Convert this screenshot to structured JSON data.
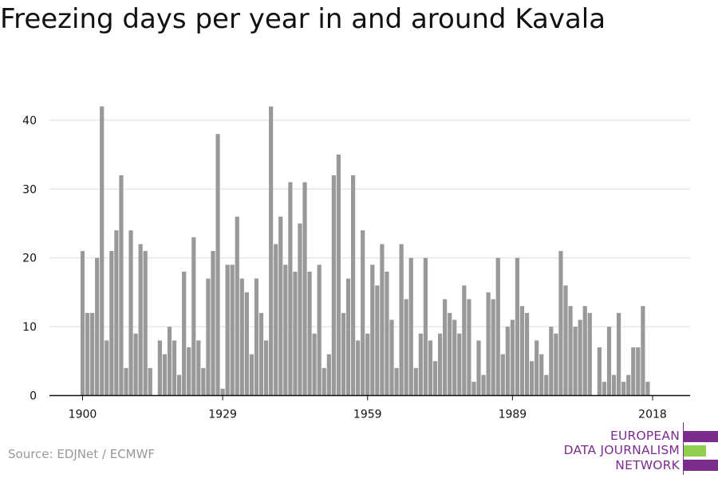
{
  "title": "Freezing days per year in and around Kavala",
  "source": "Source: EDJNet / ECMWF",
  "logo": {
    "lines": [
      "EUROPEAN",
      "DATA JOURNALISM",
      "NETWORK"
    ],
    "colors": {
      "purple": "#7b2d8e",
      "green": "#8fd14f"
    }
  },
  "colors": {
    "bar": "#999999",
    "grid": "#dddddd",
    "axis": "#111111"
  },
  "chart_data": {
    "type": "bar",
    "x": [
      1900,
      1901,
      1902,
      1903,
      1904,
      1905,
      1906,
      1907,
      1908,
      1909,
      1910,
      1911,
      1912,
      1913,
      1914,
      1915,
      1916,
      1917,
      1918,
      1919,
      1920,
      1921,
      1922,
      1923,
      1924,
      1925,
      1926,
      1927,
      1928,
      1929,
      1930,
      1931,
      1932,
      1933,
      1934,
      1935,
      1936,
      1937,
      1938,
      1939,
      1940,
      1941,
      1942,
      1943,
      1944,
      1945,
      1946,
      1947,
      1948,
      1949,
      1950,
      1951,
      1952,
      1953,
      1954,
      1955,
      1956,
      1957,
      1958,
      1959,
      1960,
      1961,
      1962,
      1963,
      1964,
      1965,
      1966,
      1967,
      1968,
      1969,
      1970,
      1971,
      1972,
      1973,
      1974,
      1975,
      1976,
      1977,
      1978,
      1979,
      1980,
      1981,
      1982,
      1983,
      1984,
      1985,
      1986,
      1987,
      1988,
      1989,
      1990,
      1991,
      1992,
      1993,
      1994,
      1995,
      1996,
      1997,
      1998,
      1999,
      2000,
      2001,
      2002,
      2003,
      2004,
      2005,
      2006,
      2007,
      2008,
      2009,
      2010,
      2011,
      2012,
      2013,
      2014,
      2015,
      2016,
      2017,
      2018
    ],
    "values": [
      21,
      12,
      12,
      20,
      42,
      8,
      21,
      24,
      32,
      4,
      24,
      9,
      22,
      21,
      4,
      0,
      8,
      6,
      10,
      8,
      3,
      18,
      7,
      23,
      8,
      4,
      17,
      21,
      38,
      1,
      19,
      19,
      26,
      17,
      15,
      6,
      17,
      12,
      8,
      42,
      22,
      26,
      19,
      31,
      18,
      25,
      31,
      18,
      9,
      19,
      4,
      6,
      32,
      35,
      12,
      17,
      32,
      8,
      24,
      9,
      19,
      16,
      22,
      18,
      11,
      4,
      22,
      14,
      20,
      4,
      9,
      20,
      8,
      5,
      9,
      14,
      12,
      11,
      9,
      16,
      14,
      2,
      8,
      3,
      15,
      14,
      20,
      6,
      10,
      11,
      20,
      13,
      12,
      5,
      8,
      6,
      3,
      10,
      9,
      21,
      16,
      13,
      10,
      11,
      13,
      12,
      0,
      7,
      2,
      10,
      3,
      12,
      2,
      3,
      7,
      7,
      13,
      2,
      0
    ],
    "xticks": [
      1900,
      1929,
      1959,
      1989,
      2018
    ],
    "yticks": [
      0,
      10,
      20,
      30,
      40
    ],
    "ylim": [
      0,
      45
    ],
    "xlabel": "",
    "ylabel": "",
    "grid": true
  }
}
